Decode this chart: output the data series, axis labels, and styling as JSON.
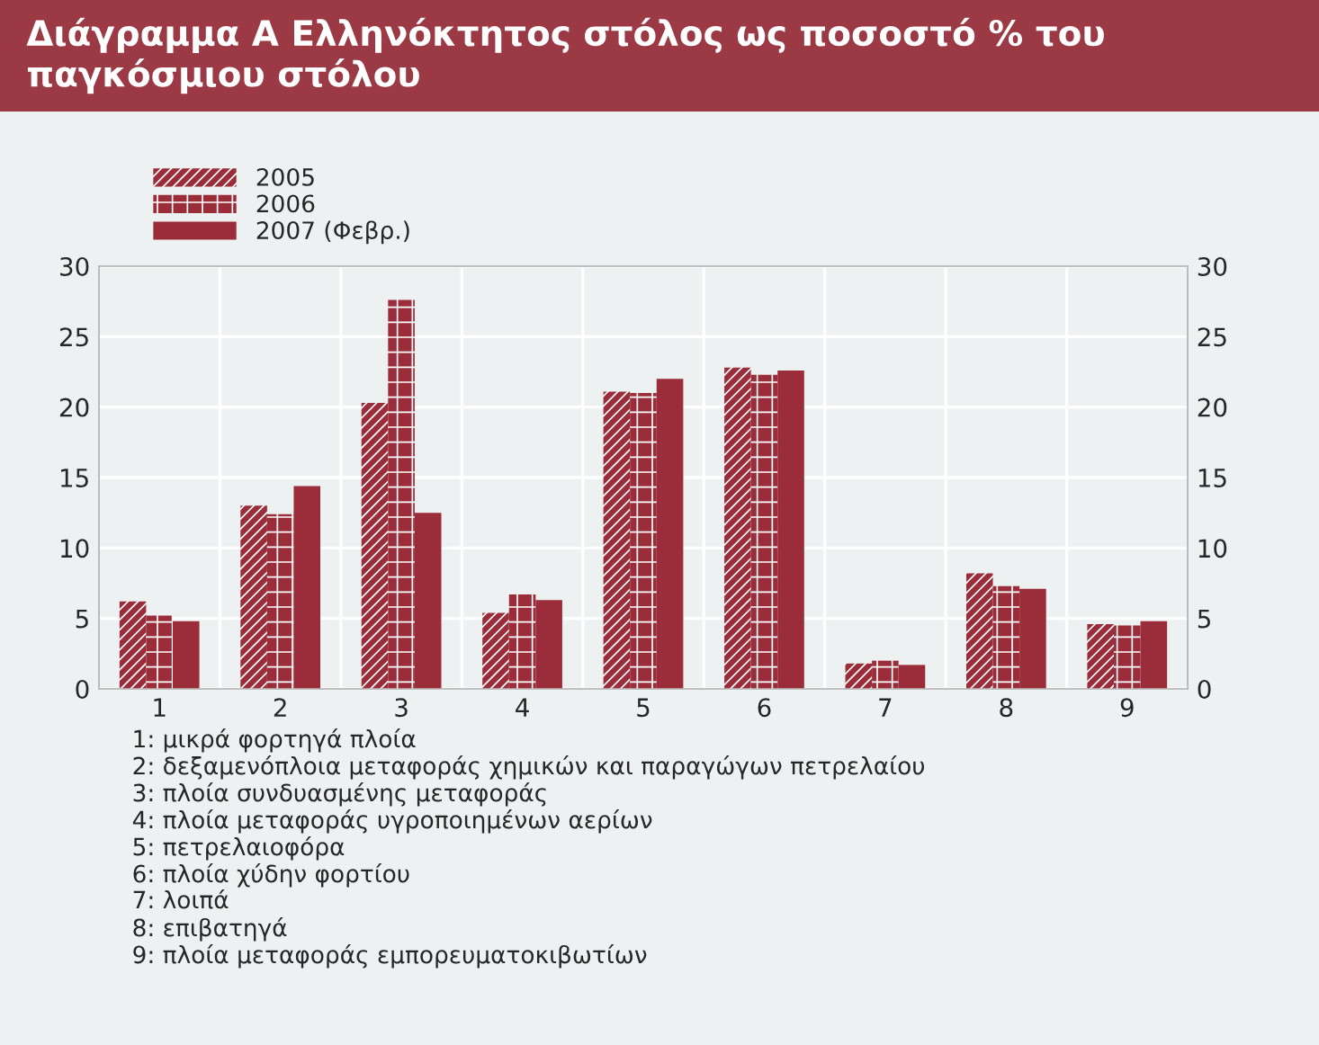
{
  "chart_data": {
    "type": "bar",
    "title": "Διάγραμμα Α Ελληνόκτητος στόλος ως ποσοστό % του παγκόσμιου στόλου",
    "categories": [
      "1",
      "2",
      "3",
      "4",
      "5",
      "6",
      "7",
      "8",
      "9"
    ],
    "series": [
      {
        "name": "2005",
        "color": "#9b2d3a",
        "values": [
          6.2,
          13.0,
          20.3,
          5.4,
          21.1,
          22.8,
          1.8,
          8.2,
          4.6
        ]
      },
      {
        "name": "2006",
        "color": "#9b2d3a",
        "values": [
          5.2,
          12.4,
          27.6,
          6.7,
          21.0,
          22.3,
          2.0,
          7.3,
          4.5
        ]
      },
      {
        "name": "2007 (Φεβρ.)",
        "color": "#9b2d3a",
        "values": [
          4.8,
          14.4,
          12.5,
          6.3,
          22.0,
          22.6,
          1.7,
          7.1,
          4.8
        ]
      }
    ],
    "ylim": [
      0,
      30
    ],
    "yticks": [
      0,
      5,
      10,
      15,
      20,
      25,
      30
    ],
    "y2lim": [
      0,
      30
    ],
    "y2ticks": [
      0,
      5,
      10,
      15,
      20,
      25,
      30
    ],
    "grid": true,
    "legend": "top left",
    "annotations": [
      "1: μικρά φορτηγά πλοία",
      "2: δεξαμενόπλοια μεταφοράς χημικών και παραγώγων πετρελαίου",
      "3: πλοία συνδυασμένης μεταφοράς",
      "4: πλοία μεταφοράς υγροποιημένων αερίων",
      "5: πετρελαιοφόρα",
      "6: πλοία χύδην φορτίου",
      "7: λοιπά",
      "8: επιβατηγά",
      "9: πλοία μεταφοράς εμπορευματοκιβωτίων"
    ]
  }
}
